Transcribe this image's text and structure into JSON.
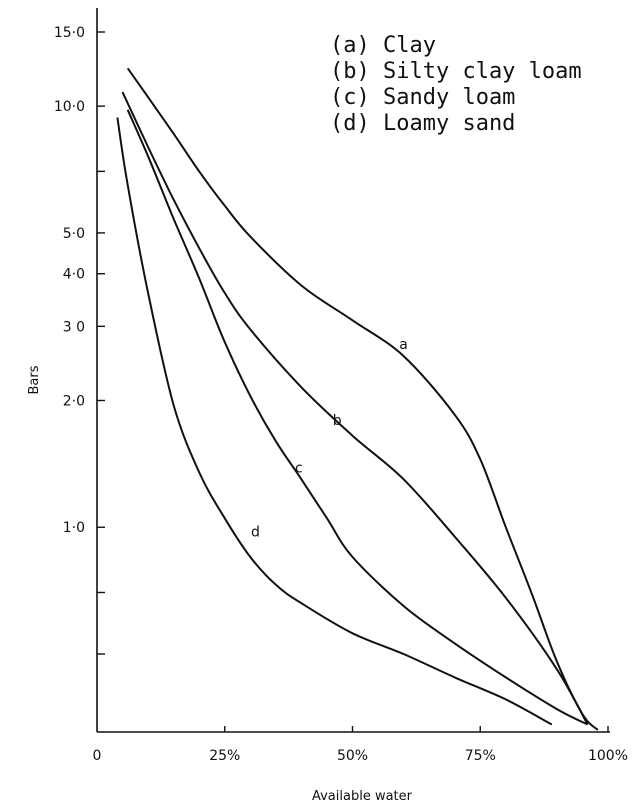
{
  "chart_data": {
    "type": "line",
    "title": "",
    "xlabel": "Available water",
    "ylabel": "Bars",
    "x_scale": "linear",
    "y_scale": "log",
    "xlim": [
      0,
      100
    ],
    "ylim": [
      0.33,
      15
    ],
    "x_ticks": [
      {
        "value": 0,
        "label": "0"
      },
      {
        "value": 25,
        "label": "25%"
      },
      {
        "value": 50,
        "label": "50%"
      },
      {
        "value": 75,
        "label": "75%"
      },
      {
        "value": 100,
        "label": "100%"
      }
    ],
    "y_ticks": [
      {
        "value": 15,
        "label": "15·0"
      },
      {
        "value": 10,
        "label": "10·0"
      },
      {
        "value": 7,
        "label": ""
      },
      {
        "value": 5,
        "label": "5·0"
      },
      {
        "value": 4,
        "label": "4·0"
      },
      {
        "value": 3,
        "label": "3 0"
      },
      {
        "value": 2,
        "label": "2·0"
      },
      {
        "value": 1,
        "label": "1·0"
      },
      {
        "value": 0.7,
        "label": ""
      },
      {
        "value": 0.5,
        "label": ""
      }
    ],
    "legend": {
      "position": "top-right",
      "entries": [
        "(a) Clay",
        "(b) Silty clay loam",
        "(c) Sandy loam",
        "(d) Loamy sand"
      ]
    },
    "grid": false,
    "series": [
      {
        "name": "a",
        "x": [
          6,
          10,
          15,
          20,
          25,
          30,
          40,
          50,
          60,
          70,
          75,
          80,
          85,
          90,
          95,
          98
        ],
        "y": [
          12.3,
          10.5,
          8.6,
          7.0,
          5.8,
          4.9,
          3.75,
          3.1,
          2.55,
          1.85,
          1.45,
          1.0,
          0.7,
          0.48,
          0.36,
          0.33
        ]
      },
      {
        "name": "b",
        "x": [
          5,
          10,
          15,
          20,
          25,
          30,
          40,
          50,
          60,
          70,
          80,
          90,
          96
        ],
        "y": [
          10.8,
          8.0,
          6.0,
          4.6,
          3.6,
          2.95,
          2.15,
          1.65,
          1.3,
          0.95,
          0.68,
          0.46,
          0.34
        ]
      },
      {
        "name": "c",
        "x": [
          6,
          10,
          15,
          20,
          25,
          30,
          35,
          40,
          45,
          50,
          60,
          70,
          80,
          90,
          96
        ],
        "y": [
          9.8,
          7.6,
          5.4,
          3.9,
          2.75,
          2.05,
          1.6,
          1.3,
          1.05,
          0.85,
          0.65,
          0.53,
          0.44,
          0.37,
          0.34
        ]
      },
      {
        "name": "d",
        "x": [
          4,
          6,
          10,
          15,
          20,
          25,
          30,
          35,
          40,
          50,
          60,
          70,
          80,
          89
        ],
        "y": [
          9.4,
          6.5,
          3.6,
          1.95,
          1.35,
          1.05,
          0.85,
          0.73,
          0.66,
          0.56,
          0.5,
          0.44,
          0.39,
          0.34
        ]
      }
    ],
    "curve_labels": [
      {
        "text": "a",
        "x": 60,
        "y": 2.65
      },
      {
        "text": "b",
        "x": 47,
        "y": 1.75
      },
      {
        "text": "c",
        "x": 39.5,
        "y": 1.35
      },
      {
        "text": "d",
        "x": 31,
        "y": 0.95
      }
    ]
  }
}
